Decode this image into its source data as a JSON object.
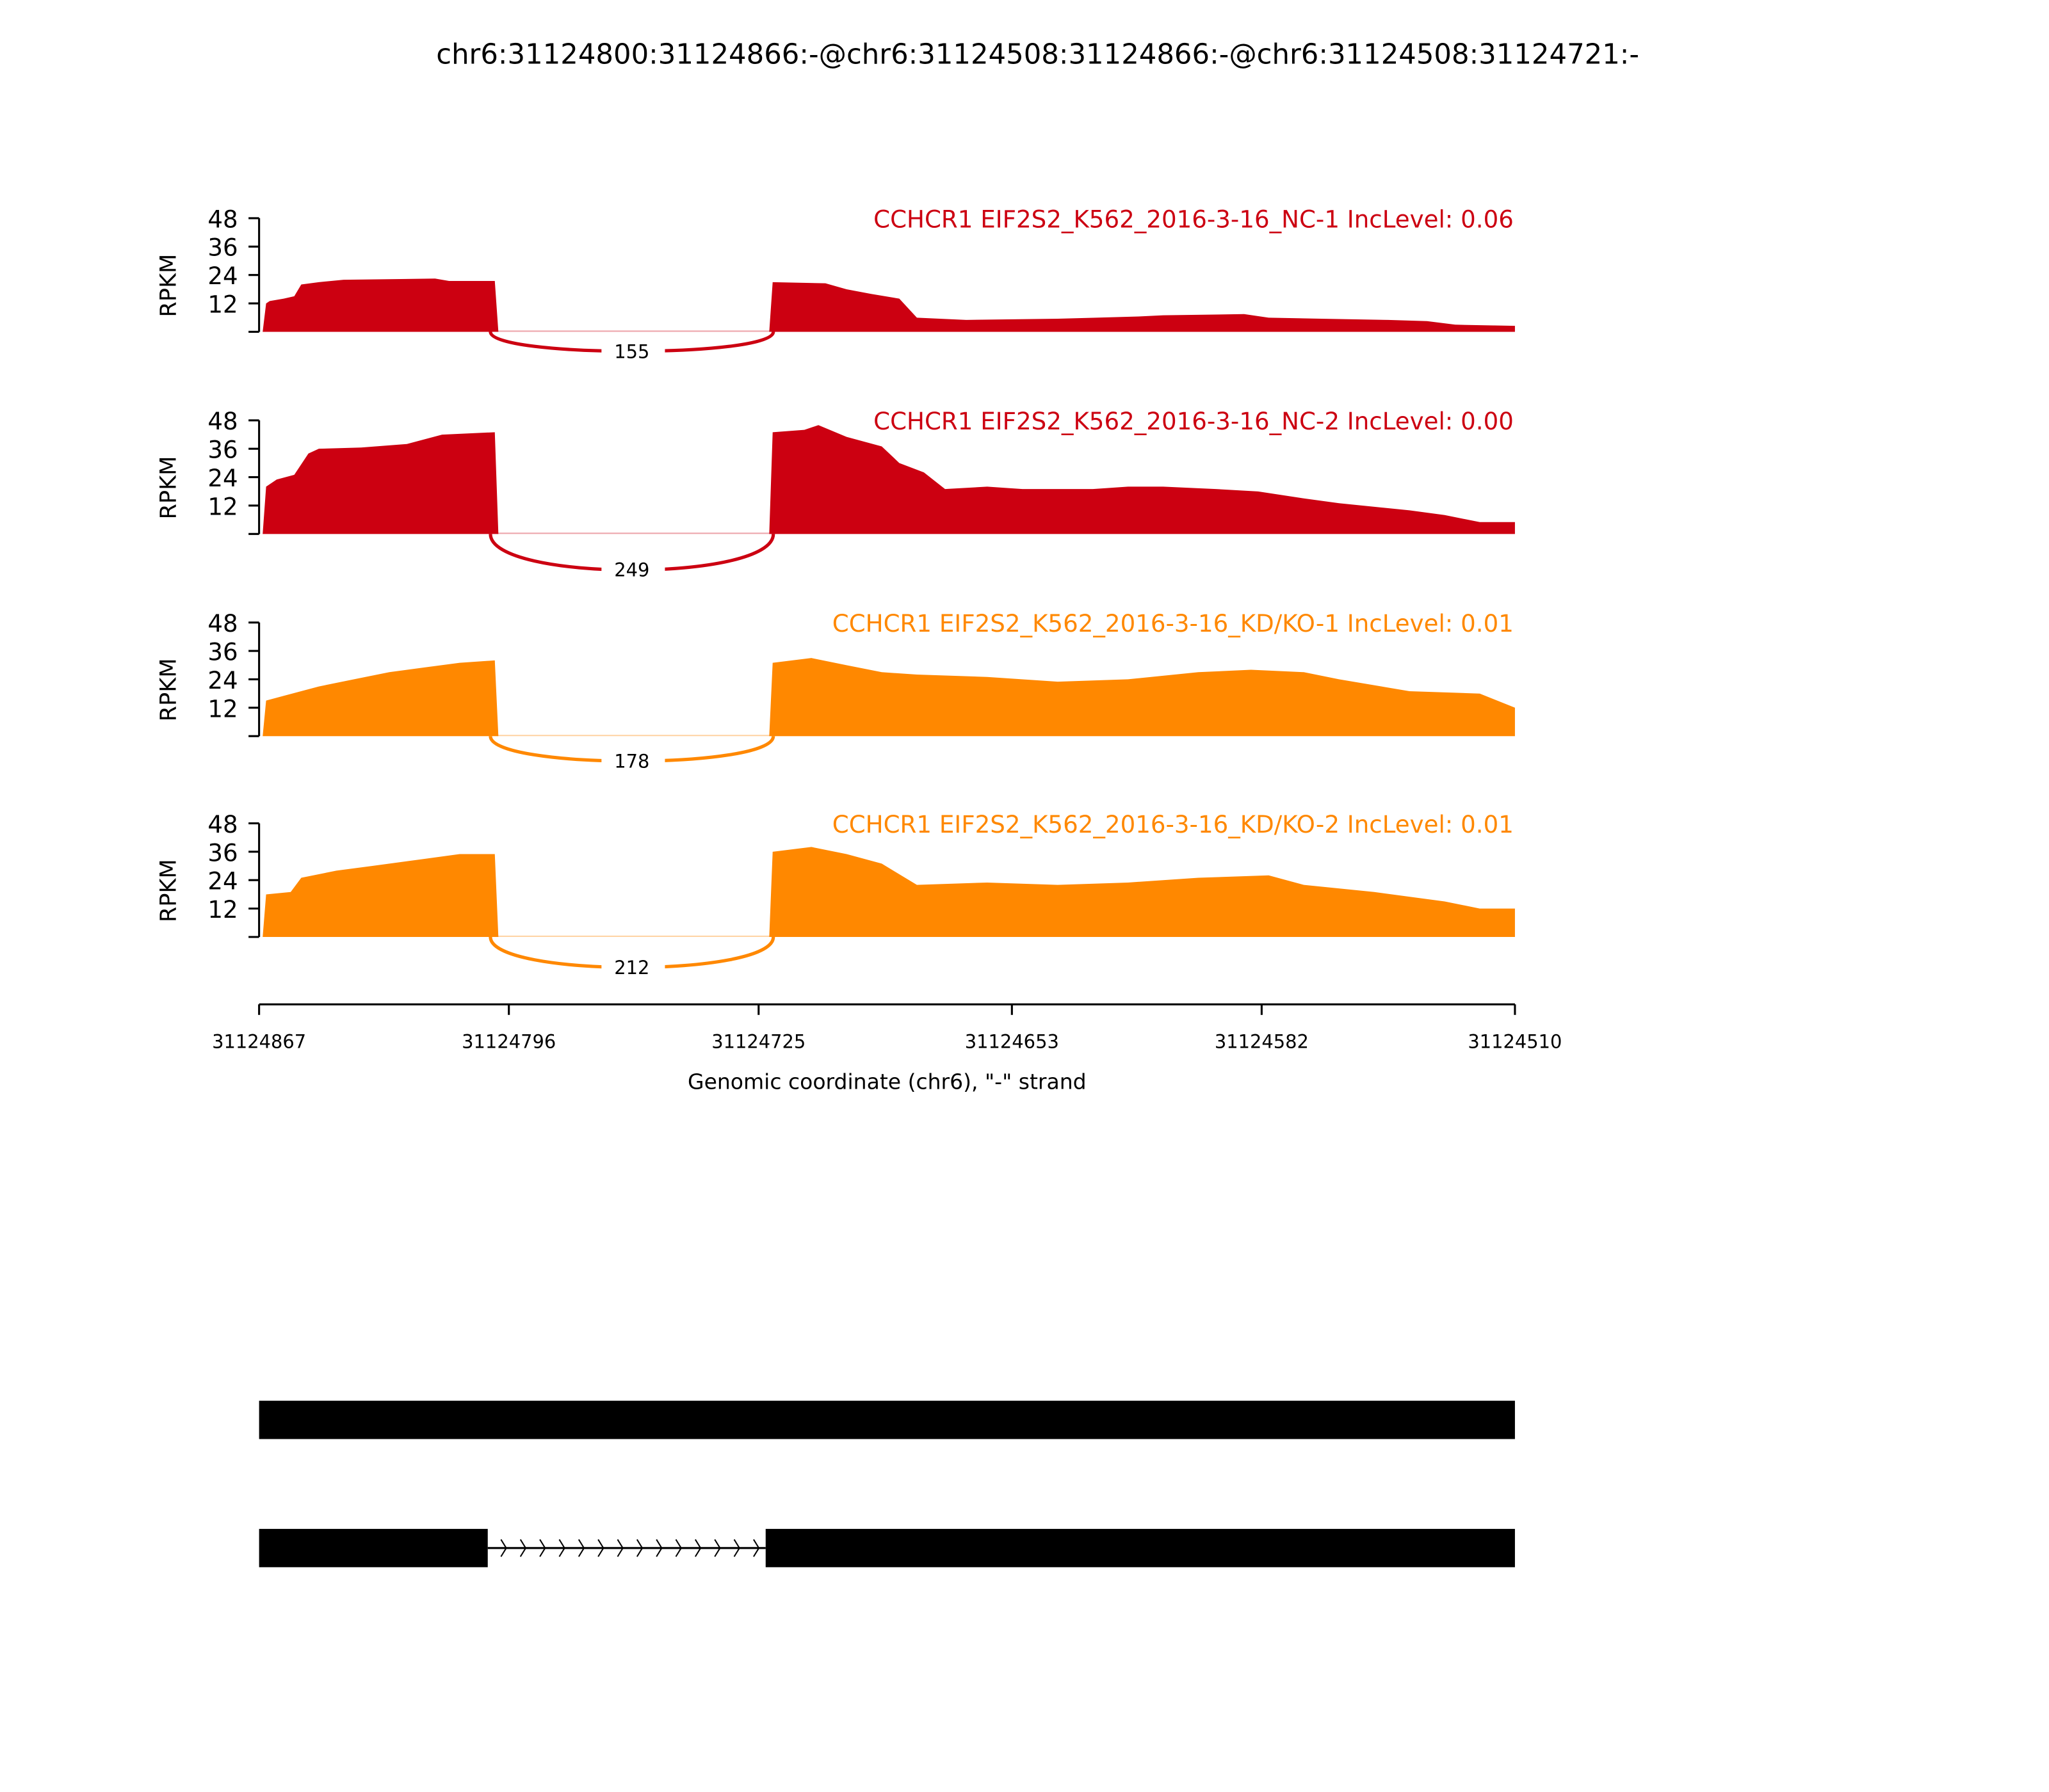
{
  "chart_data": {
    "type": "area",
    "title": "chr6:31124800:31124866:-@chr6:31124508:31124866:-@chr6:31124508:31124721:-",
    "xlabel": "Genomic coordinate (chr6), \"-\" strand",
    "xlim": [
      31124867,
      31124510
    ],
    "xticks": [
      "31124867",
      "31124796",
      "31124725",
      "31124653",
      "31124582",
      "31124510"
    ],
    "xtick_values": [
      31124867,
      31124796,
      31124725,
      31124653,
      31124582,
      31124510
    ],
    "ylabel": "RPKM",
    "ylim": [
      0,
      48
    ],
    "yticks": [
      "12",
      "24",
      "36",
      "48"
    ],
    "ytick_values": [
      12,
      24,
      36,
      48
    ],
    "series": [
      {
        "name": "CCHCR1 EIF2S2_K562_2016-3-16_NC-1 IncLevel: 0.06",
        "color": "#cc0011",
        "junction_count": "155",
        "exon1": [
          [
            31124866,
            0
          ],
          [
            31124865,
            12
          ],
          [
            31124864,
            13
          ],
          [
            31124860,
            14
          ],
          [
            31124857,
            15
          ],
          [
            31124855,
            20
          ],
          [
            31124850,
            21
          ],
          [
            31124843,
            22
          ],
          [
            31124817,
            22.5
          ],
          [
            31124813,
            21.5
          ],
          [
            31124800,
            21.5
          ],
          [
            31124799,
            0
          ]
        ],
        "exon2": [
          [
            31124722,
            0
          ],
          [
            31124721,
            21
          ],
          [
            31124706,
            20.5
          ],
          [
            31124700,
            18
          ],
          [
            31124693,
            16
          ],
          [
            31124685,
            14
          ],
          [
            31124680,
            6
          ],
          [
            31124666,
            5
          ],
          [
            31124640,
            5.5
          ],
          [
            31124629,
            6
          ],
          [
            31124617,
            6.5
          ],
          [
            31124610,
            7
          ],
          [
            31124587,
            7.5
          ],
          [
            31124580,
            6
          ],
          [
            31124565,
            5.5
          ],
          [
            31124546,
            5
          ],
          [
            31124535,
            4.5
          ],
          [
            31124527,
            3
          ],
          [
            31124510,
            2.5
          ],
          [
            31124510,
            0
          ]
        ]
      },
      {
        "name": "CCHCR1 EIF2S2_K562_2016-3-16_NC-2 IncLevel: 0.00",
        "color": "#cc0011",
        "junction_count": "249",
        "exon1": [
          [
            31124866,
            0
          ],
          [
            31124865,
            20
          ],
          [
            31124862,
            23
          ],
          [
            31124857,
            25
          ],
          [
            31124853,
            34
          ],
          [
            31124850,
            36
          ],
          [
            31124838,
            36.5
          ],
          [
            31124825,
            38
          ],
          [
            31124815,
            42
          ],
          [
            31124800,
            43
          ],
          [
            31124799,
            0
          ]
        ],
        "exon2": [
          [
            31124722,
            0
          ],
          [
            31124721,
            43
          ],
          [
            31124712,
            44
          ],
          [
            31124708,
            46
          ],
          [
            31124700,
            41
          ],
          [
            31124690,
            37
          ],
          [
            31124685,
            30
          ],
          [
            31124678,
            26
          ],
          [
            31124672,
            19
          ],
          [
            31124660,
            20
          ],
          [
            31124650,
            19
          ],
          [
            31124630,
            19
          ],
          [
            31124620,
            20
          ],
          [
            31124610,
            20
          ],
          [
            31124595,
            19
          ],
          [
            31124583,
            18
          ],
          [
            31124570,
            15
          ],
          [
            31124560,
            13
          ],
          [
            31124540,
            10
          ],
          [
            31124530,
            8
          ],
          [
            31124520,
            5
          ],
          [
            31124510,
            5
          ],
          [
            31124510,
            0
          ]
        ]
      },
      {
        "name": "CCHCR1 EIF2S2_K562_2016-3-16_KD/KO-1 IncLevel: 0.01",
        "color": "#ff8800",
        "junction_count": "178",
        "exon1": [
          [
            31124866,
            0
          ],
          [
            31124865,
            15
          ],
          [
            31124860,
            17
          ],
          [
            31124850,
            21
          ],
          [
            31124840,
            24
          ],
          [
            31124830,
            27
          ],
          [
            31124820,
            29
          ],
          [
            31124810,
            31
          ],
          [
            31124800,
            32
          ],
          [
            31124799,
            0
          ]
        ],
        "exon2": [
          [
            31124722,
            0
          ],
          [
            31124721,
            31
          ],
          [
            31124710,
            33
          ],
          [
            31124700,
            30
          ],
          [
            31124690,
            27
          ],
          [
            31124680,
            26
          ],
          [
            31124660,
            25
          ],
          [
            31124640,
            23
          ],
          [
            31124620,
            24
          ],
          [
            31124600,
            27
          ],
          [
            31124585,
            28
          ],
          [
            31124570,
            27
          ],
          [
            31124560,
            24
          ],
          [
            31124540,
            19
          ],
          [
            31124520,
            18
          ],
          [
            31124510,
            12
          ],
          [
            31124510,
            0
          ]
        ]
      },
      {
        "name": "CCHCR1 EIF2S2_K562_2016-3-16_KD/KO-2 IncLevel: 0.01",
        "color": "#ff8800",
        "junction_count": "212",
        "exon1": [
          [
            31124866,
            0
          ],
          [
            31124865,
            18
          ],
          [
            31124858,
            19
          ],
          [
            31124855,
            25
          ],
          [
            31124845,
            28
          ],
          [
            31124835,
            30
          ],
          [
            31124820,
            33
          ],
          [
            31124810,
            35
          ],
          [
            31124800,
            35
          ],
          [
            31124799,
            0
          ]
        ],
        "exon2": [
          [
            31124722,
            0
          ],
          [
            31124721,
            36
          ],
          [
            31124710,
            38
          ],
          [
            31124700,
            35
          ],
          [
            31124690,
            31
          ],
          [
            31124680,
            22
          ],
          [
            31124660,
            23
          ],
          [
            31124640,
            22
          ],
          [
            31124620,
            23
          ],
          [
            31124600,
            25
          ],
          [
            31124580,
            26
          ],
          [
            31124570,
            22
          ],
          [
            31124550,
            19
          ],
          [
            31124530,
            15
          ],
          [
            31124520,
            12
          ],
          [
            31124510,
            12
          ],
          [
            31124510,
            0
          ]
        ]
      }
    ],
    "transcripts": [
      {
        "exons": [
          [
            31124867,
            31124510
          ]
        ]
      },
      {
        "exons": [
          [
            31124867,
            31124802
          ],
          [
            31124723,
            31124510
          ]
        ]
      }
    ]
  }
}
